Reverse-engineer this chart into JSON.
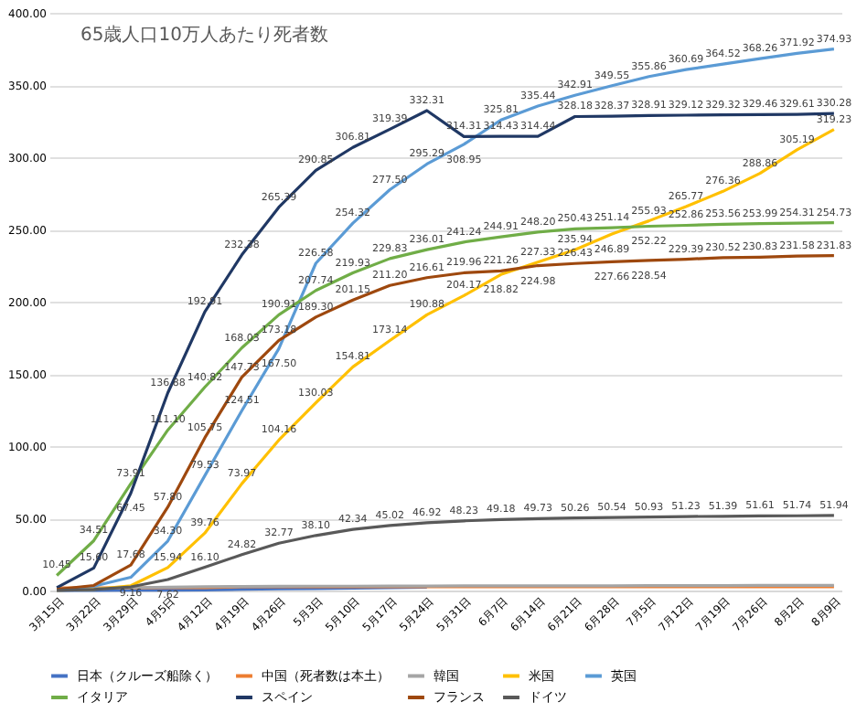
{
  "chart_data": {
    "type": "line",
    "title": "65歳人口10万人あたり死者数",
    "categories": [
      "3月15日",
      "3月22日",
      "3月29日",
      "4月5日",
      "4月12日",
      "4月19日",
      "4月26日",
      "5月3日",
      "5月10日",
      "5月17日",
      "5月24日",
      "5月31日",
      "6月7日",
      "6月14日",
      "6月21日",
      "6月28日",
      "7月5日",
      "7月12日",
      "7月19日",
      "7月26日",
      "8月2日",
      "8月9日"
    ],
    "ylim": [
      0,
      400
    ],
    "yticks": [
      {
        "value": 0,
        "label": "0.00"
      },
      {
        "value": 50,
        "label": "50.00"
      },
      {
        "value": 100,
        "label": "100.00"
      },
      {
        "value": 150,
        "label": "150.00"
      },
      {
        "value": 200,
        "label": "200.00"
      },
      {
        "value": 250,
        "label": "250.00"
      },
      {
        "value": 300,
        "label": "300.00"
      },
      {
        "value": 350,
        "label": "350.00"
      },
      {
        "value": 400,
        "label": "400.00"
      }
    ],
    "grid": "y",
    "legend": "bottom",
    "marker": "none",
    "line_style": "solid",
    "series": [
      {
        "name": "日本（クルーズ船除く）",
        "color": "#4472c4",
        "values": [
          0.07,
          0.1,
          0.15,
          0.25,
          0.4,
          0.85,
          1.1,
          1.4,
          1.7,
          1.9,
          2.2,
          null,
          null,
          null,
          null,
          null,
          null,
          null,
          null,
          null,
          null,
          null
        ]
      },
      {
        "name": "中国（死者数は本土）",
        "color": "#ed7d31",
        "values": [
          1.8,
          1.85,
          1.87,
          1.89,
          1.9,
          2.6,
          2.6,
          2.6,
          2.6,
          2.6,
          2.6,
          2.6,
          2.6,
          2.6,
          2.6,
          2.6,
          2.6,
          2.6,
          2.6,
          2.6,
          2.6,
          2.6
        ]
      },
      {
        "name": "韓国",
        "color": "#a5a5a5",
        "values": [
          0.9,
          1.3,
          1.9,
          2.3,
          2.6,
          2.8,
          2.9,
          3.0,
          3.0,
          3.1,
          3.1,
          3.2,
          3.2,
          3.3,
          3.3,
          3.3,
          3.4,
          3.4,
          3.4,
          3.5,
          3.5,
          3.6
        ]
      },
      {
        "name": "米国",
        "color": "#ffc000",
        "values": [
          0.2,
          0.8,
          3.3,
          15.94,
          39.76,
          73.97,
          104.16,
          130.03,
          154.81,
          173.14,
          190.88,
          204.17,
          218.82,
          227.33,
          235.94,
          246.89,
          255.93,
          265.77,
          276.36,
          288.86,
          305.19,
          319.23
        ],
        "value_labels": [
          null,
          null,
          null,
          "15.94",
          "39.76",
          "73.97",
          "104.16",
          "130.03",
          "154.81",
          "173.14",
          "190.88",
          "204.17",
          "218.82",
          "227.33",
          "235.94",
          "246.89",
          "255.93",
          "265.77",
          "276.36",
          "288.86",
          "305.19",
          "319.23"
        ]
      },
      {
        "name": "英国",
        "color": "#5b9bd5",
        "values": [
          0.5,
          3.0,
          9.16,
          34.3,
          79.53,
          124.51,
          167.5,
          226.58,
          254.32,
          277.5,
          295.29,
          308.95,
          325.81,
          335.44,
          342.91,
          349.55,
          355.86,
          360.69,
          364.52,
          368.26,
          371.92,
          374.93
        ],
        "value_labels": [
          null,
          null,
          "9.16",
          "34.30",
          "79.53",
          "124.51",
          "167.50",
          "226.58",
          "254.32",
          "277.50",
          "295.29",
          "308.95",
          "325.81",
          "335.44",
          "342.91",
          "349.55",
          "355.86",
          "360.69",
          "364.52",
          "368.26",
          "371.92",
          "374.93"
        ]
      },
      {
        "name": "イタリア",
        "color": "#70ad47",
        "values": [
          10.45,
          34.51,
          73.91,
          111.1,
          140.82,
          168.03,
          190.91,
          207.74,
          219.93,
          229.83,
          236.01,
          241.24,
          244.91,
          248.2,
          250.43,
          251.14,
          252.22,
          252.86,
          253.56,
          253.99,
          254.31,
          254.73
        ],
        "value_labels": [
          "10.45",
          "34.51",
          "73.91",
          "111.10",
          "140.82",
          "168.03",
          "190.91",
          "207.74",
          "219.93",
          "229.83",
          "236.01",
          "241.24",
          "244.91",
          "248.20",
          "250.43",
          "251.14",
          "252.22",
          "252.86",
          "253.56",
          "253.99",
          "254.31",
          "254.73"
        ]
      },
      {
        "name": "スペイン",
        "color": "#203864",
        "values": [
          2.0,
          15.6,
          67.45,
          136.88,
          192.91,
          232.38,
          265.39,
          290.85,
          306.81,
          319.39,
          332.31,
          314.31,
          314.43,
          314.44,
          328.18,
          328.37,
          328.91,
          329.12,
          329.32,
          329.46,
          329.61,
          330.28
        ],
        "value_labels": [
          null,
          "15.60",
          "67.45",
          "136.88",
          "192.91",
          "232.38",
          "265.39",
          "290.85",
          "306.81",
          "319.39",
          "332.31",
          "314.31",
          "314.43",
          "314.44",
          "328.18",
          "328.37",
          "328.91",
          "329.12",
          "329.32",
          "329.46",
          "329.61",
          "330.28"
        ]
      },
      {
        "name": "フランス",
        "color": "#9e480e",
        "values": [
          0.8,
          3.5,
          17.68,
          57.8,
          105.75,
          147.73,
          173.18,
          189.3,
          201.15,
          211.2,
          216.61,
          219.96,
          221.26,
          224.98,
          226.43,
          227.66,
          228.54,
          229.39,
          230.52,
          230.83,
          231.58,
          231.83
        ],
        "value_labels": [
          null,
          null,
          "17.68",
          "57.80",
          "105.75",
          "147.73",
          "173.18",
          "189.30",
          "201.15",
          "211.20",
          "216.61",
          "219.96",
          "221.26",
          "224.98",
          "226.43",
          "227.66",
          "228.54",
          "229.39",
          "230.52",
          "230.83",
          "231.58",
          "231.83"
        ]
      },
      {
        "name": "ドイツ",
        "color": "#595959",
        "values": [
          0.1,
          0.7,
          2.5,
          7.62,
          16.1,
          24.82,
          32.77,
          38.1,
          42.34,
          45.02,
          46.92,
          48.23,
          49.18,
          49.73,
          50.26,
          50.54,
          50.93,
          51.23,
          51.39,
          51.61,
          51.74,
          51.94
        ],
        "value_labels": [
          null,
          null,
          null,
          "7.62",
          "16.10",
          "24.82",
          "32.77",
          "38.10",
          "42.34",
          "45.02",
          "46.92",
          "48.23",
          "49.18",
          "49.73",
          "50.26",
          "50.54",
          "50.93",
          "51.23",
          "51.39",
          "51.61",
          "51.74",
          "51.94"
        ]
      }
    ]
  }
}
